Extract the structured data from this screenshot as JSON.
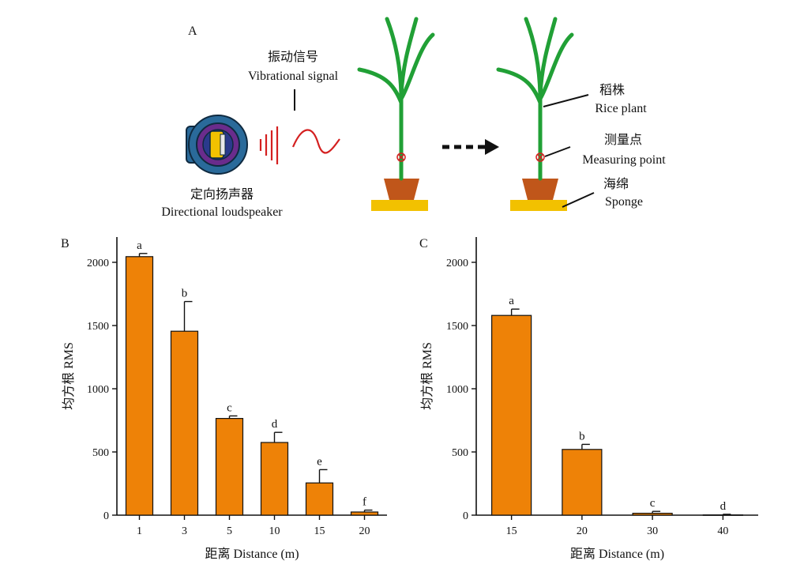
{
  "panel_a": {
    "label": "A",
    "vibration_label_cn": "振动信号",
    "vibration_label_en": "Vibrational signal",
    "speaker_label_cn": "定向扬声器",
    "speaker_label_en": "Directional loudspeaker",
    "rice_label_cn": "稻株",
    "rice_label_en": "Rice plant",
    "measure_label_cn": "测量点",
    "measure_label_en": "Measuring point",
    "sponge_label_cn": "海绵",
    "sponge_label_en": "Sponge",
    "icons": [
      "loudspeaker-icon",
      "sound-wave-icon",
      "rice-plant-icon",
      "arrow-icon"
    ],
    "colors": {
      "plant": "#21a036",
      "pot": "#c0561a",
      "sponge": "#f2c100",
      "signal": "#d42020",
      "speaker_outer": "#1f5a8c",
      "speaker_ring": "#6a2c8c",
      "speaker_core": "#f2c100"
    }
  },
  "chart_data": [
    {
      "panel": "B",
      "type": "bar",
      "categories": [
        "1",
        "3",
        "5",
        "10",
        "15",
        "20"
      ],
      "values": [
        2045,
        1455,
        765,
        575,
        255,
        25
      ],
      "errors": [
        25,
        235,
        20,
        80,
        105,
        15
      ],
      "significance": [
        "a",
        "b",
        "c",
        "d",
        "e",
        "f"
      ],
      "xlabel": "距离 Distance (m)",
      "ylabel": "均方根 RMS",
      "ylim": [
        0,
        2200
      ],
      "yticks": [
        0,
        500,
        1000,
        1500,
        2000
      ],
      "bar_color": "#ee8207"
    },
    {
      "panel": "C",
      "type": "bar",
      "categories": [
        "15",
        "20",
        "30",
        "40"
      ],
      "values": [
        1580,
        520,
        15,
        2
      ],
      "errors": [
        50,
        40,
        15,
        5
      ],
      "significance": [
        "a",
        "b",
        "c",
        "d"
      ],
      "xlabel": "距离 Distance (m)",
      "ylabel": "均方根 RMS",
      "ylim": [
        0,
        2200
      ],
      "yticks": [
        0,
        500,
        1000,
        1500,
        2000
      ],
      "bar_color": "#ee8207"
    }
  ]
}
